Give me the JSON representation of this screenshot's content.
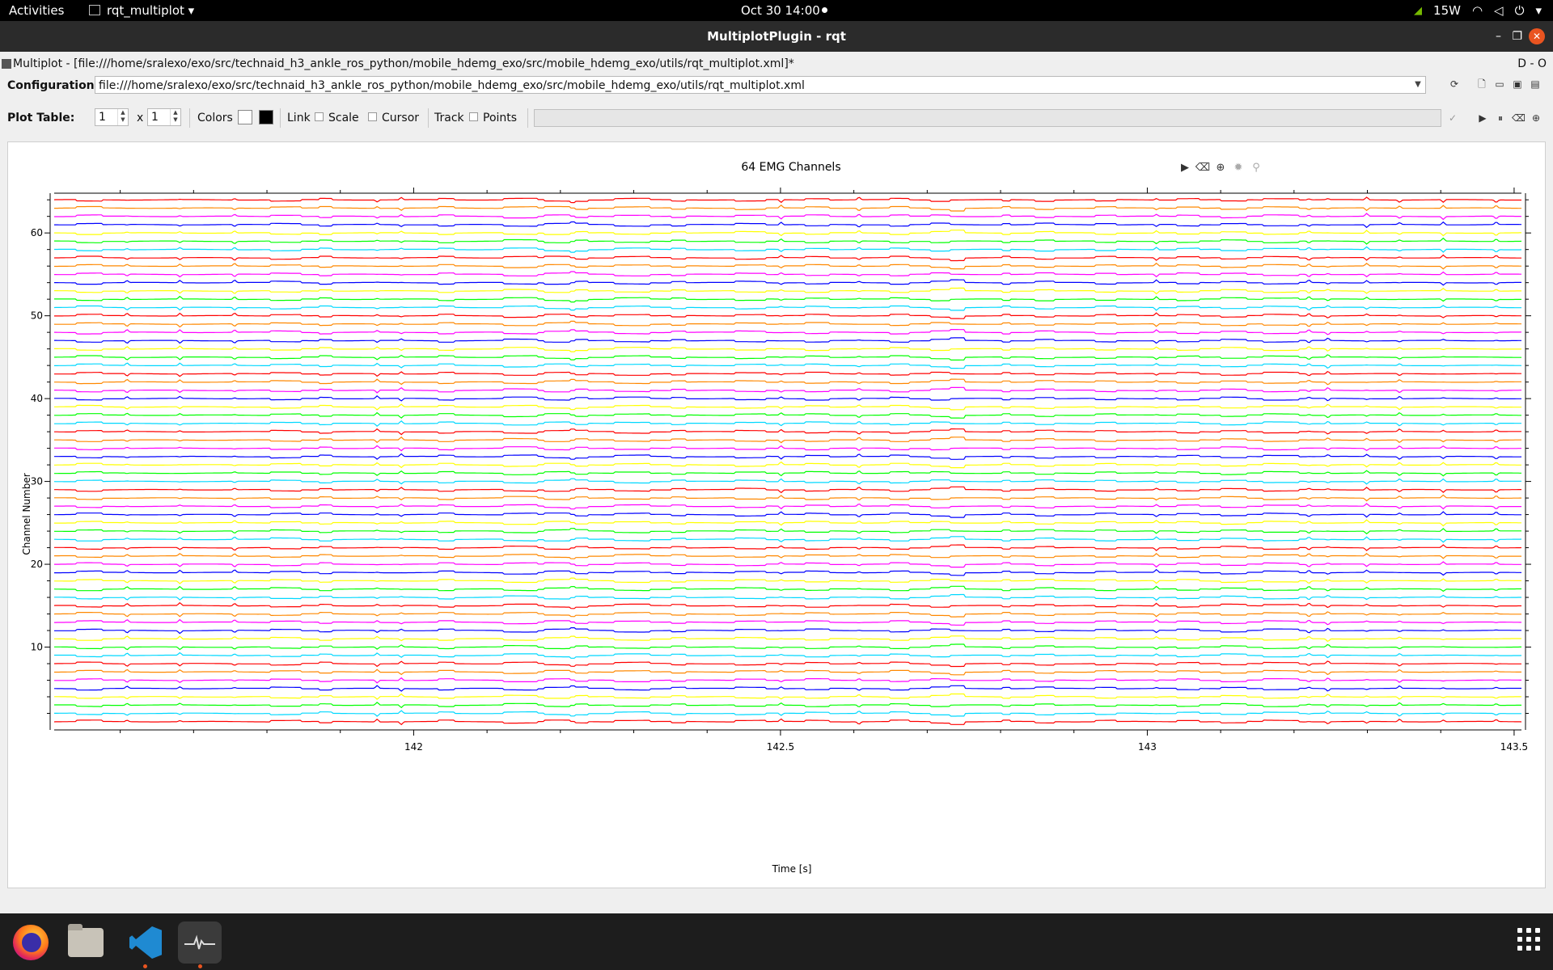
{
  "topbar": {
    "activities": "Activities",
    "app_menu": "rqt_multiplot ▾",
    "clock": "Oct 30  14:00",
    "battery": "15W"
  },
  "window": {
    "title": "MultiplotPlugin - rqt",
    "close_glyph": "✕",
    "minimize_glyph": "–",
    "maximize_glyph": "❐"
  },
  "plugin": {
    "title": "Multiplot - [file:///home/sralexo/exo/src/technaid_h3_ankle_ros_python/mobile_hdemg_exo/src/mobile_hdemg_exo/utils/rqt_multiplot.xml]*",
    "right_controls": "D  -  O"
  },
  "configuration": {
    "label": "Configuration:",
    "value": "file:///home/sralexo/exo/src/technaid_h3_ankle_ros_python/mobile_hdemg_exo/src/mobile_hdemg_exo/utils/rqt_multiplot.xml",
    "dropdown_glyph": "▼"
  },
  "plot_table": {
    "label": "Plot Table:",
    "rows": "1",
    "x_label": "x",
    "cols": "1",
    "colors_label": "Colors",
    "link_label": "Link",
    "scale_label": "Scale",
    "cursor_label": "Cursor",
    "track_label": "Track",
    "points_label": "Points",
    "swatch_bg": "#ffffff",
    "swatch_fg": "#000000"
  },
  "icons": {
    "config_toolbar": [
      "new-icon",
      "open-icon",
      "save-icon",
      "save-as-icon"
    ],
    "plot_toolbar": [
      "play-icon",
      "pause-icon",
      "clear-icon",
      "export-icon"
    ],
    "chart_toolbar": [
      "play-icon",
      "clear-icon",
      "export-icon",
      "settings-icon",
      "zoom-icon"
    ]
  },
  "dock": {
    "apps": [
      "firefox-icon",
      "files-icon",
      "vscode-icon",
      "rqt-plot-icon",
      "app-grid-icon"
    ]
  },
  "chart_data": {
    "type": "line",
    "title": "64 EMG Channels",
    "xlabel": "Time [s]",
    "ylabel": "Channel Number",
    "xlim": [
      141.51,
      143.51
    ],
    "ylim": [
      0,
      64.8
    ],
    "x_ticks": [
      142,
      142.5,
      143,
      143.5
    ],
    "x_tick_labels": [
      "142",
      "142.5",
      "143",
      "143.5"
    ],
    "y_ticks": [
      10,
      20,
      30,
      40,
      50,
      60
    ],
    "y_tick_labels": [
      "10",
      "20",
      "30",
      "40",
      "50",
      "60"
    ],
    "channel_count": 64,
    "channel_baselines": [
      1,
      2,
      3,
      4,
      5,
      6,
      7,
      8,
      9,
      10,
      11,
      12,
      13,
      14,
      15,
      16,
      17,
      18,
      19,
      20,
      21,
      22,
      23,
      24,
      25,
      26,
      27,
      28,
      29,
      30,
      31,
      32,
      33,
      34,
      35,
      36,
      37,
      38,
      39,
      40,
      41,
      42,
      43,
      44,
      45,
      46,
      47,
      48,
      49,
      50,
      51,
      52,
      53,
      54,
      55,
      56,
      57,
      58,
      59,
      60,
      61,
      62,
      63,
      64
    ],
    "color_cycle": [
      "#ff0000",
      "#00d8ff",
      "#00ff00",
      "#ffff00",
      "#0000ff",
      "#ff00ff",
      "#ff8800"
    ],
    "signal_amplitude": 0.35,
    "grid": false,
    "legend": "none"
  }
}
